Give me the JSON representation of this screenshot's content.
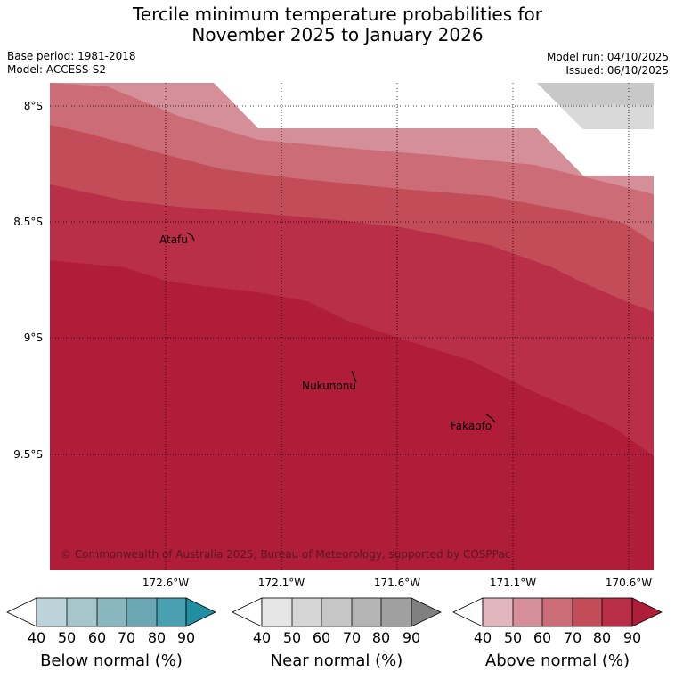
{
  "title": {
    "line1": "Tercile minimum temperature probabilities for",
    "line2": "November 2025 to January 2026"
  },
  "meta": {
    "base_period": "Base period: 1981-2018",
    "model": "Model: ACCESS-S2",
    "model_run": "Model run: 04/10/2025",
    "issued": "Issued: 06/10/2025"
  },
  "map": {
    "lat_labels": [
      "8°S",
      "8.5°S",
      "9°S",
      "9.5°S"
    ],
    "lon_labels": [
      "172.6°W",
      "172.1°W",
      "171.6°W",
      "171.1°W",
      "170.6°W"
    ],
    "places": [
      "Atafu",
      "Nukunonu",
      "Fakaofo"
    ],
    "copyright": "© Commonwealth of Australia 2025, Bureau of Meteorology, supported by COSPPac",
    "colors": {
      "above_40": "#e1b6bd",
      "above_50": "#d58f98",
      "above_60": "#cb6c76",
      "above_70": "#c24d59",
      "above_80": "#b92f47",
      "above_90": "#b01d38",
      "near_50": "#d9d9d9",
      "near_60": "#c8c8c8"
    }
  },
  "legends": [
    {
      "title": "Below normal (%)",
      "ticks": [
        "40",
        "50",
        "60",
        "70",
        "80",
        "90"
      ],
      "colors": [
        "#ffffff",
        "#bcd3d9",
        "#a6c6cc",
        "#88b7c0",
        "#6aa7b3",
        "#48a0b1",
        "#1f8fa1"
      ]
    },
    {
      "title": "Near normal (%)",
      "ticks": [
        "40",
        "50",
        "60",
        "70",
        "80",
        "90"
      ],
      "colors": [
        "#ffffff",
        "#e6e6e6",
        "#d6d6d6",
        "#c6c6c6",
        "#b4b4b4",
        "#a0a0a0",
        "#808080"
      ]
    },
    {
      "title": "Above normal (%)",
      "ticks": [
        "40",
        "50",
        "60",
        "70",
        "80",
        "90"
      ],
      "colors": [
        "#ffffff",
        "#e1b6bd",
        "#d58f98",
        "#cb6c76",
        "#c24d59",
        "#b92f47",
        "#b01d38"
      ]
    }
  ]
}
